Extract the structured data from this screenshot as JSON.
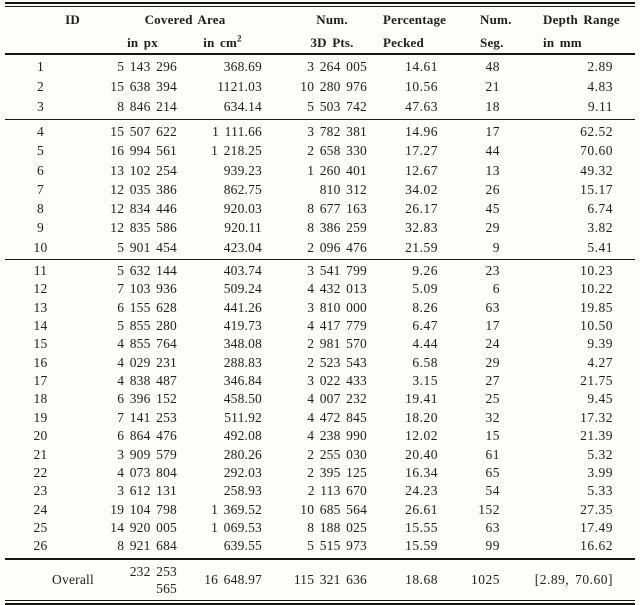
{
  "colors": {
    "background": "#fdfdfc",
    "text": "#1e1e1e",
    "rule": "#151515"
  },
  "table": {
    "header": {
      "id": "ID",
      "covered_area": "Covered Area",
      "in_px": "in px",
      "in_cm_base": "in cm",
      "in_cm_sup": "2",
      "num_3d": "Num.",
      "pts_3d": "3D Pts.",
      "percentage": "Percentage",
      "pecked": "Pecked",
      "num_seg": "Num.",
      "seg": "Seg.",
      "depth_range": "Depth Range",
      "in_mm": "in mm"
    },
    "groups": [
      {
        "rows": [
          [
            "1",
            "5 143 296",
            "368.69",
            "3 264 005",
            "14.61",
            "48",
            "2.89"
          ],
          [
            "2",
            "15 638 394",
            "1121.03",
            "10 280 976",
            "10.56",
            "21",
            "4.83"
          ],
          [
            "3",
            "8 846 214",
            "634.14",
            "5 503 742",
            "47.63",
            "18",
            "9.11"
          ]
        ]
      },
      {
        "rows": [
          [
            "4",
            "15 507 622",
            "1 111.66",
            "3 782 381",
            "14.96",
            "17",
            "62.52"
          ],
          [
            "5",
            "16 994 561",
            "1 218.25",
            "2 658 330",
            "17.27",
            "44",
            "70.60"
          ],
          [
            "6",
            "13 102 254",
            "939.23",
            "1 260 401",
            "12.67",
            "13",
            "49.32"
          ],
          [
            "7",
            "12 035 386",
            "862.75",
            "810 312",
            "34.02",
            "26",
            "15.17"
          ],
          [
            "8",
            "12 834 446",
            "920.03",
            "8 677 163",
            "26.17",
            "45",
            "6.74"
          ],
          [
            "9",
            "12 835 586",
            "920.11",
            "8 386 259",
            "32.83",
            "29",
            "3.82"
          ],
          [
            "10",
            "5 901 454",
            "423.04",
            "2 096 476",
            "21.59",
            "9",
            "5.41"
          ]
        ]
      },
      {
        "rows": [
          [
            "11",
            "5 632 144",
            "403.74",
            "3 541 799",
            "9.26",
            "23",
            "10.23"
          ],
          [
            "12",
            "7 103 936",
            "509.24",
            "4 432 013",
            "5.09",
            "6",
            "10.22"
          ],
          [
            "13",
            "6 155 628",
            "441.26",
            "3 810 000",
            "8.26",
            "63",
            "19.85"
          ],
          [
            "14",
            "5 855 280",
            "419.73",
            "4 417 779",
            "6.47",
            "17",
            "10.50"
          ],
          [
            "15",
            "4 855 764",
            "348.08",
            "2 981 570",
            "4.44",
            "24",
            "9.39"
          ],
          [
            "16",
            "4 029 231",
            "288.83",
            "2 523 543",
            "6.58",
            "29",
            "4.27"
          ],
          [
            "17",
            "4 838 487",
            "346.84",
            "3 022 433",
            "3.15",
            "27",
            "21.75"
          ],
          [
            "18",
            "6 396 152",
            "458.50",
            "4 007 232",
            "19.41",
            "25",
            "9.45"
          ],
          [
            "19",
            "7 141 253",
            "511.92",
            "4 472 845",
            "18.20",
            "32",
            "17.32"
          ],
          [
            "20",
            "6 864 476",
            "492.08",
            "4 238 990",
            "12.02",
            "15",
            "21.39"
          ],
          [
            "21",
            "3 909 579",
            "280.26",
            "2 255 030",
            "20.40",
            "61",
            "5.32"
          ],
          [
            "22",
            "4 073 804",
            "292.03",
            "2 395 125",
            "16.34",
            "65",
            "3.99"
          ],
          [
            "23",
            "3 612 131",
            "258.93",
            "2 113 670",
            "24.23",
            "54",
            "5.33"
          ],
          [
            "24",
            "19 104 798",
            "1 369.52",
            "10 685 564",
            "26.61",
            "152",
            "27.35"
          ],
          [
            "25",
            "14 920 005",
            "1 069.53",
            "8 188 025",
            "15.55",
            "63",
            "17.49"
          ],
          [
            "26",
            "8 921 684",
            "639.55",
            "5 515 973",
            "15.59",
            "99",
            "16.62"
          ]
        ]
      }
    ],
    "overall": [
      "Overall",
      "232 253 565",
      "16 648.97",
      "115 321 636",
      "18.68",
      "1025",
      "[2.89, 70.60]"
    ]
  }
}
